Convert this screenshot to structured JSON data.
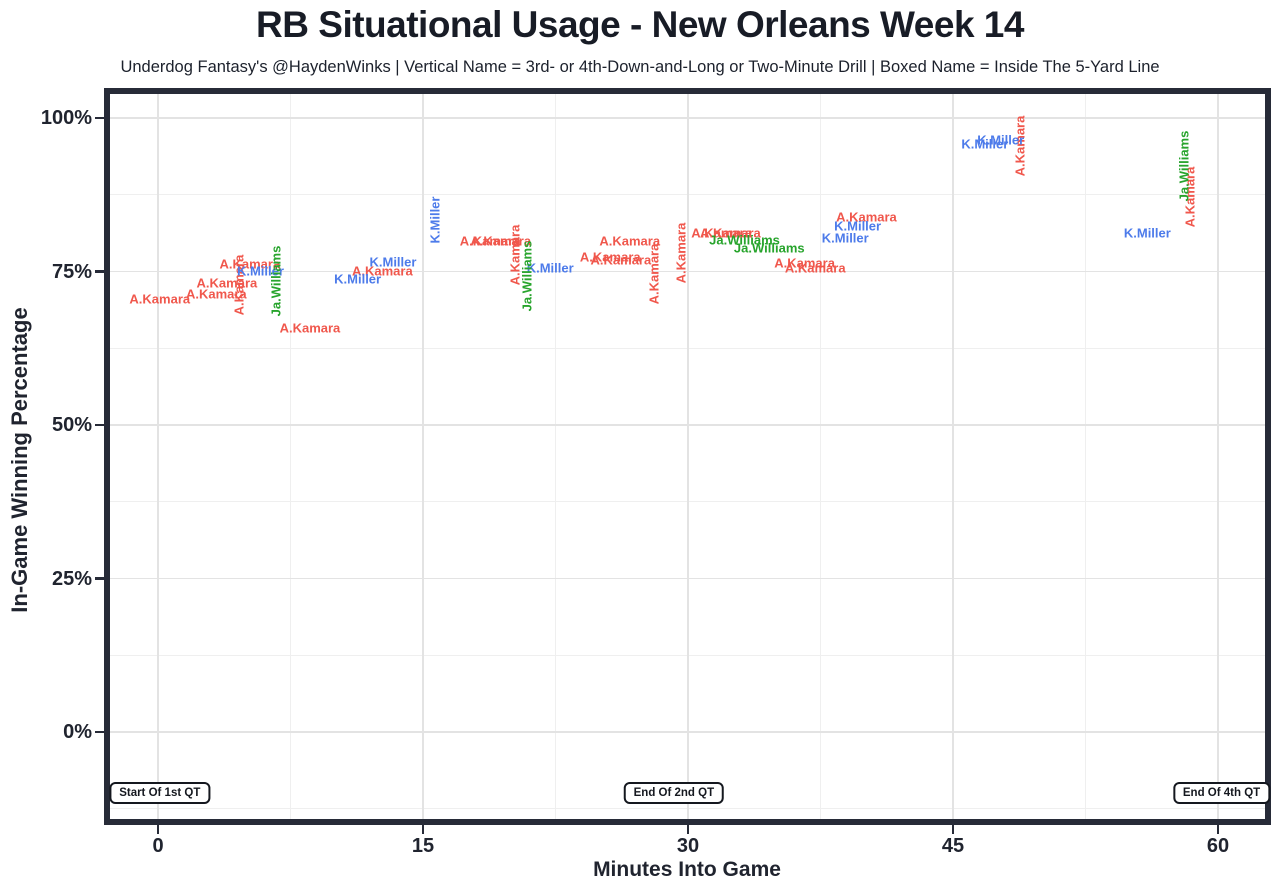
{
  "title": "RB Situational Usage - New Orleans Week 14",
  "subtitle": "Underdog Fantasy's @HaydenWinks | Vertical Name = 3rd- or 4th-Down-and-Long or Two-Minute Drill | Boxed Name = Inside The 5-Yard Line",
  "colors": {
    "A.Kamara": "#F0574C",
    "K.Miller": "#4D7BEA",
    "Ja.Williams": "#27A42C",
    "axis_text": "#20242F",
    "panel_border": "#272B38",
    "grid_major": "#E3E3E3",
    "grid_minor": "#EFEFEF"
  },
  "axes": {
    "x": {
      "label": "Minutes Into Game",
      "ticks": [
        {
          "v": 0,
          "label": "0"
        },
        {
          "v": 15,
          "label": "15"
        },
        {
          "v": 30,
          "label": "30"
        },
        {
          "v": 45,
          "label": "45"
        },
        {
          "v": 60,
          "label": "60"
        }
      ],
      "minor": [
        7.5,
        22.5,
        37.5,
        52.5
      ]
    },
    "y": {
      "label": "In-Game Winning Percentage",
      "ticks": [
        {
          "v": 0,
          "label": "0%"
        },
        {
          "v": 25,
          "label": "25%"
        },
        {
          "v": 50,
          "label": "50%"
        },
        {
          "v": 75,
          "label": "75%"
        },
        {
          "v": 100,
          "label": "100%"
        }
      ],
      "minor": [
        -12.5,
        12.5,
        37.5,
        62.5,
        87.5
      ]
    }
  },
  "chart_data": {
    "type": "scatter",
    "title": "RB Situational Usage - New Orleans Week 14",
    "subtitle": "Underdog Fantasy's @HaydenWinks | Vertical Name = 3rd- or 4th-Down-and-Long or Two-Minute Drill | Boxed Name = Inside The 5-Yard Line",
    "xlabel": "Minutes Into Game",
    "ylabel": "In-Game Winning Percentage",
    "xlim": [
      -3,
      63
    ],
    "ylim": [
      -15,
      104
    ],
    "x_unit": "minutes into game",
    "y_unit": "in-game winning percentage (%)",
    "point_style": "player name text label; vertical = 3rd- or 4th-down-and-long or two-minute drill",
    "series": [
      {
        "name": "A.Kamara",
        "color": "#F0574C",
        "points": [
          {
            "x": 0.1,
            "y": 70.5,
            "vertical": false
          },
          {
            "x": 3.3,
            "y": 71.3,
            "vertical": false
          },
          {
            "x": 3.9,
            "y": 73.1,
            "vertical": false
          },
          {
            "x": 4.6,
            "y": 72.8,
            "vertical": true
          },
          {
            "x": 5.2,
            "y": 76.2,
            "vertical": false
          },
          {
            "x": 8.6,
            "y": 65.8,
            "vertical": false
          },
          {
            "x": 12.7,
            "y": 75.1,
            "vertical": false
          },
          {
            "x": 18.8,
            "y": 80.0,
            "vertical": false
          },
          {
            "x": 19.4,
            "y": 80.0,
            "vertical": false
          },
          {
            "x": 20.2,
            "y": 77.7,
            "vertical": true
          },
          {
            "x": 25.6,
            "y": 77.4,
            "vertical": false
          },
          {
            "x": 26.2,
            "y": 76.9,
            "vertical": false
          },
          {
            "x": 26.7,
            "y": 80.0,
            "vertical": false
          },
          {
            "x": 28.1,
            "y": 74.6,
            "vertical": true
          },
          {
            "x": 29.6,
            "y": 78.0,
            "vertical": true
          },
          {
            "x": 31.9,
            "y": 81.3,
            "vertical": false
          },
          {
            "x": 32.4,
            "y": 81.3,
            "vertical": false
          },
          {
            "x": 36.6,
            "y": 76.4,
            "vertical": false
          },
          {
            "x": 37.2,
            "y": 75.6,
            "vertical": false
          },
          {
            "x": 40.1,
            "y": 83.9,
            "vertical": false
          },
          {
            "x": 48.8,
            "y": 95.4,
            "vertical": true
          },
          {
            "x": 58.4,
            "y": 87.1,
            "vertical": true
          }
        ]
      },
      {
        "name": "K.Miller",
        "color": "#4D7BEA",
        "points": [
          {
            "x": 5.8,
            "y": 75.1,
            "vertical": false
          },
          {
            "x": 11.3,
            "y": 73.8,
            "vertical": false
          },
          {
            "x": 13.3,
            "y": 76.5,
            "vertical": false
          },
          {
            "x": 15.7,
            "y": 83.4,
            "vertical": true
          },
          {
            "x": 22.2,
            "y": 75.6,
            "vertical": false
          },
          {
            "x": 38.9,
            "y": 80.5,
            "vertical": false
          },
          {
            "x": 39.6,
            "y": 82.4,
            "vertical": false
          },
          {
            "x": 46.8,
            "y": 95.8,
            "vertical": false
          },
          {
            "x": 47.7,
            "y": 96.4,
            "vertical": false
          },
          {
            "x": 56.0,
            "y": 81.3,
            "vertical": false
          }
        ]
      },
      {
        "name": "Ja.Williams",
        "color": "#27A42C",
        "points": [
          {
            "x": 6.7,
            "y": 73.5,
            "vertical": true
          },
          {
            "x": 20.9,
            "y": 74.3,
            "vertical": true
          },
          {
            "x": 33.2,
            "y": 80.1,
            "vertical": false
          },
          {
            "x": 34.6,
            "y": 78.8,
            "vertical": false
          },
          {
            "x": 58.1,
            "y": 92.2,
            "vertical": true
          }
        ]
      }
    ],
    "annotations": [
      {
        "text": "Start Of 1st QT",
        "x": 0.1,
        "y": -10
      },
      {
        "text": "End Of 2nd QT",
        "x": 29.2,
        "y": -10
      },
      {
        "text": "End Of 4th QT",
        "x": 60.2,
        "y": -10
      }
    ]
  }
}
